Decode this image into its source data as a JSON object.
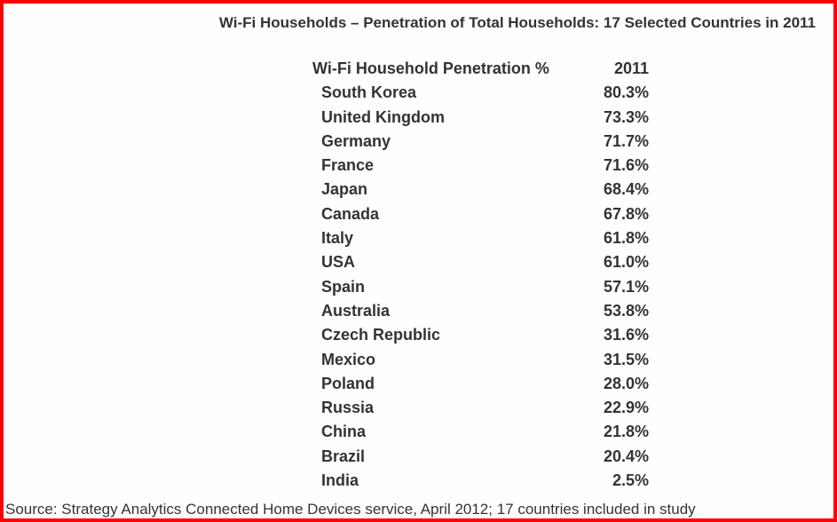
{
  "frame": {
    "border_color": "#ff0000",
    "background_color": "#fffefe",
    "text_color": "#333333"
  },
  "title": "Wi-Fi Households – Penetration of Total Households: 17 Selected Countries in 2011",
  "chart_data": {
    "type": "table",
    "title": "Wi-Fi Households – Penetration of Total Households: 17 Selected Countries in 2011",
    "columns": [
      "Wi-Fi Household Penetration %",
      "2011"
    ],
    "rows": [
      [
        "South Korea",
        "80.3%"
      ],
      [
        "United Kingdom",
        "73.3%"
      ],
      [
        "Germany",
        "71.7%"
      ],
      [
        "France",
        "71.6%"
      ],
      [
        "Japan",
        "68.4%"
      ],
      [
        "Canada",
        "67.8%"
      ],
      [
        "Italy",
        "61.8%"
      ],
      [
        "USA",
        "61.0%"
      ],
      [
        "Spain",
        "57.1%"
      ],
      [
        "Australia",
        "53.8%"
      ],
      [
        "Czech Republic",
        "31.6%"
      ],
      [
        "Mexico",
        "31.5%"
      ],
      [
        "Poland",
        "28.0%"
      ],
      [
        "Russia",
        "22.9%"
      ],
      [
        "China",
        "21.8%"
      ],
      [
        "Brazil",
        "20.4%"
      ],
      [
        "India",
        "2.5%"
      ]
    ],
    "values_numeric": [
      80.3,
      73.3,
      71.7,
      71.6,
      68.4,
      67.8,
      61.8,
      61.0,
      57.1,
      53.8,
      31.6,
      31.5,
      28.0,
      22.9,
      21.8,
      20.4,
      2.5
    ],
    "value_unit": "%",
    "year": "2011"
  },
  "source": "Source: Strategy Analytics Connected Home Devices service, April 2012; 17 countries included in study"
}
